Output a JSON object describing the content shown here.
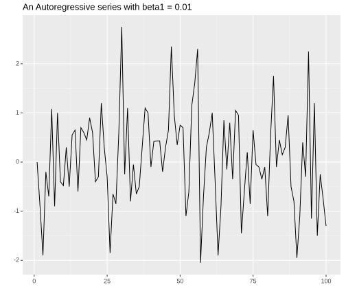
{
  "chart_data": {
    "type": "line",
    "title": "An Autoregressive series with beta1 = 0.01",
    "x": [
      1,
      2,
      3,
      4,
      5,
      6,
      7,
      8,
      9,
      10,
      11,
      12,
      13,
      14,
      15,
      16,
      17,
      18,
      19,
      20,
      21,
      22,
      23,
      24,
      25,
      26,
      27,
      28,
      29,
      30,
      31,
      32,
      33,
      34,
      35,
      36,
      37,
      38,
      39,
      40,
      41,
      42,
      43,
      44,
      45,
      46,
      47,
      48,
      49,
      50,
      51,
      52,
      53,
      54,
      55,
      56,
      57,
      58,
      59,
      60,
      61,
      62,
      63,
      64,
      65,
      66,
      67,
      68,
      69,
      70,
      71,
      72,
      73,
      74,
      75,
      76,
      77,
      78,
      79,
      80,
      81,
      82,
      83,
      84,
      85,
      86,
      87,
      88,
      89,
      90,
      91,
      92,
      93,
      94,
      95,
      96,
      97,
      98,
      99,
      100
    ],
    "series": [
      {
        "color": "#000000",
        "values": [
          0.0,
          -0.9,
          -1.9,
          -0.2,
          -0.7,
          1.08,
          -0.9,
          1.0,
          -0.4,
          -0.48,
          0.3,
          -0.5,
          0.55,
          0.65,
          -0.6,
          0.7,
          0.6,
          0.45,
          0.9,
          0.6,
          -0.4,
          -0.3,
          1.2,
          0.3,
          -0.3,
          -1.85,
          -0.65,
          -0.85,
          0.6,
          2.75,
          -0.25,
          1.1,
          -0.8,
          -0.05,
          -0.65,
          -0.5,
          0.3,
          1.1,
          1.0,
          -0.1,
          0.42,
          0.43,
          0.43,
          -0.2,
          0.3,
          0.65,
          2.35,
          0.95,
          0.35,
          0.75,
          0.7,
          -1.1,
          -0.6,
          1.15,
          1.6,
          2.3,
          -2.05,
          -0.7,
          0.3,
          0.6,
          1.0,
          -0.4,
          -1.9,
          -0.9,
          0.85,
          -0.15,
          0.8,
          -0.35,
          1.05,
          0.95,
          -1.45,
          -0.6,
          0.2,
          -0.85,
          0.65,
          -0.05,
          -0.1,
          -0.35,
          -0.1,
          -1.1,
          0.55,
          1.75,
          -0.1,
          0.45,
          0.15,
          0.3,
          0.95,
          -0.5,
          -0.8,
          -1.95,
          -1.1,
          0.4,
          -0.3,
          2.25,
          -1.15,
          1.2,
          -1.5,
          -0.25,
          -0.75,
          -1.3
        ]
      }
    ],
    "xlim": [
      -3.95,
      104.95
    ],
    "ylim": [
      -2.29,
      2.99
    ],
    "xticks": [
      0,
      25,
      50,
      75,
      100
    ],
    "yticks": [
      -2,
      -1,
      0,
      1,
      2
    ],
    "grid": true
  }
}
